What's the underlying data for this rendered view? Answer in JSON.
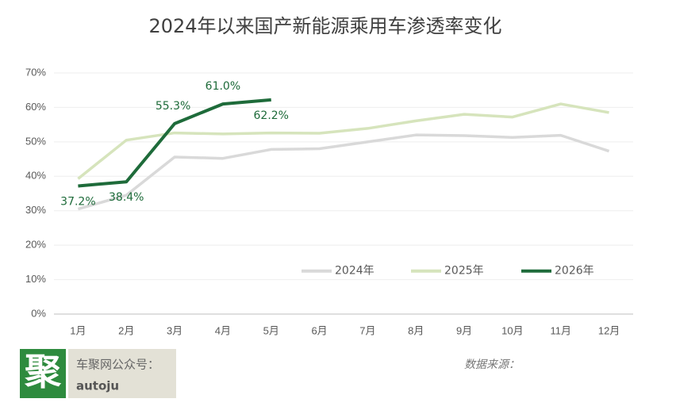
{
  "chart_data": {
    "type": "line",
    "title": "2024年以来国产新能源乘用车渗透率变化",
    "categories": [
      "1月",
      "2月",
      "3月",
      "4月",
      "5月",
      "6月",
      "7月",
      "8月",
      "9月",
      "10月",
      "11月",
      "12月"
    ],
    "series": [
      {
        "name": "2024年",
        "color": "#d9d9d9",
        "values": [
          30.5,
          34.5,
          45.6,
          45.2,
          47.8,
          48.0,
          50.0,
          52.0,
          51.8,
          51.3,
          51.9,
          47.3
        ]
      },
      {
        "name": "2025年",
        "color": "#d6e4bc",
        "values": [
          39.3,
          50.5,
          52.6,
          52.3,
          52.6,
          52.5,
          53.9,
          56.1,
          58.0,
          57.2,
          61.0,
          58.5
        ]
      },
      {
        "name": "2026年",
        "color": "#1e6b3a",
        "values": [
          37.2,
          38.4,
          55.3,
          61.0,
          62.2,
          null,
          null,
          null,
          null,
          null,
          null,
          null
        ],
        "value_labels": [
          "37.2%",
          "38.4%",
          "55.3%",
          "61.0%",
          "62.2%",
          null,
          null,
          null,
          null,
          null,
          null,
          null
        ]
      }
    ],
    "ylim": [
      0,
      70
    ],
    "yticks": [
      {
        "value": 0,
        "label": "0%"
      },
      {
        "value": 10,
        "label": "10%"
      },
      {
        "value": 20,
        "label": "20%"
      },
      {
        "value": 30,
        "label": "30%"
      },
      {
        "value": 40,
        "label": "40%"
      },
      {
        "value": 50,
        "label": "50%"
      },
      {
        "value": 60,
        "label": "60%"
      },
      {
        "value": 70,
        "label": "70%"
      }
    ],
    "grid": true,
    "legend": "lower right"
  },
  "footer": {
    "logo": "聚",
    "account_label": "车聚网公众号：",
    "account": "autoju",
    "source": "数据来源："
  }
}
